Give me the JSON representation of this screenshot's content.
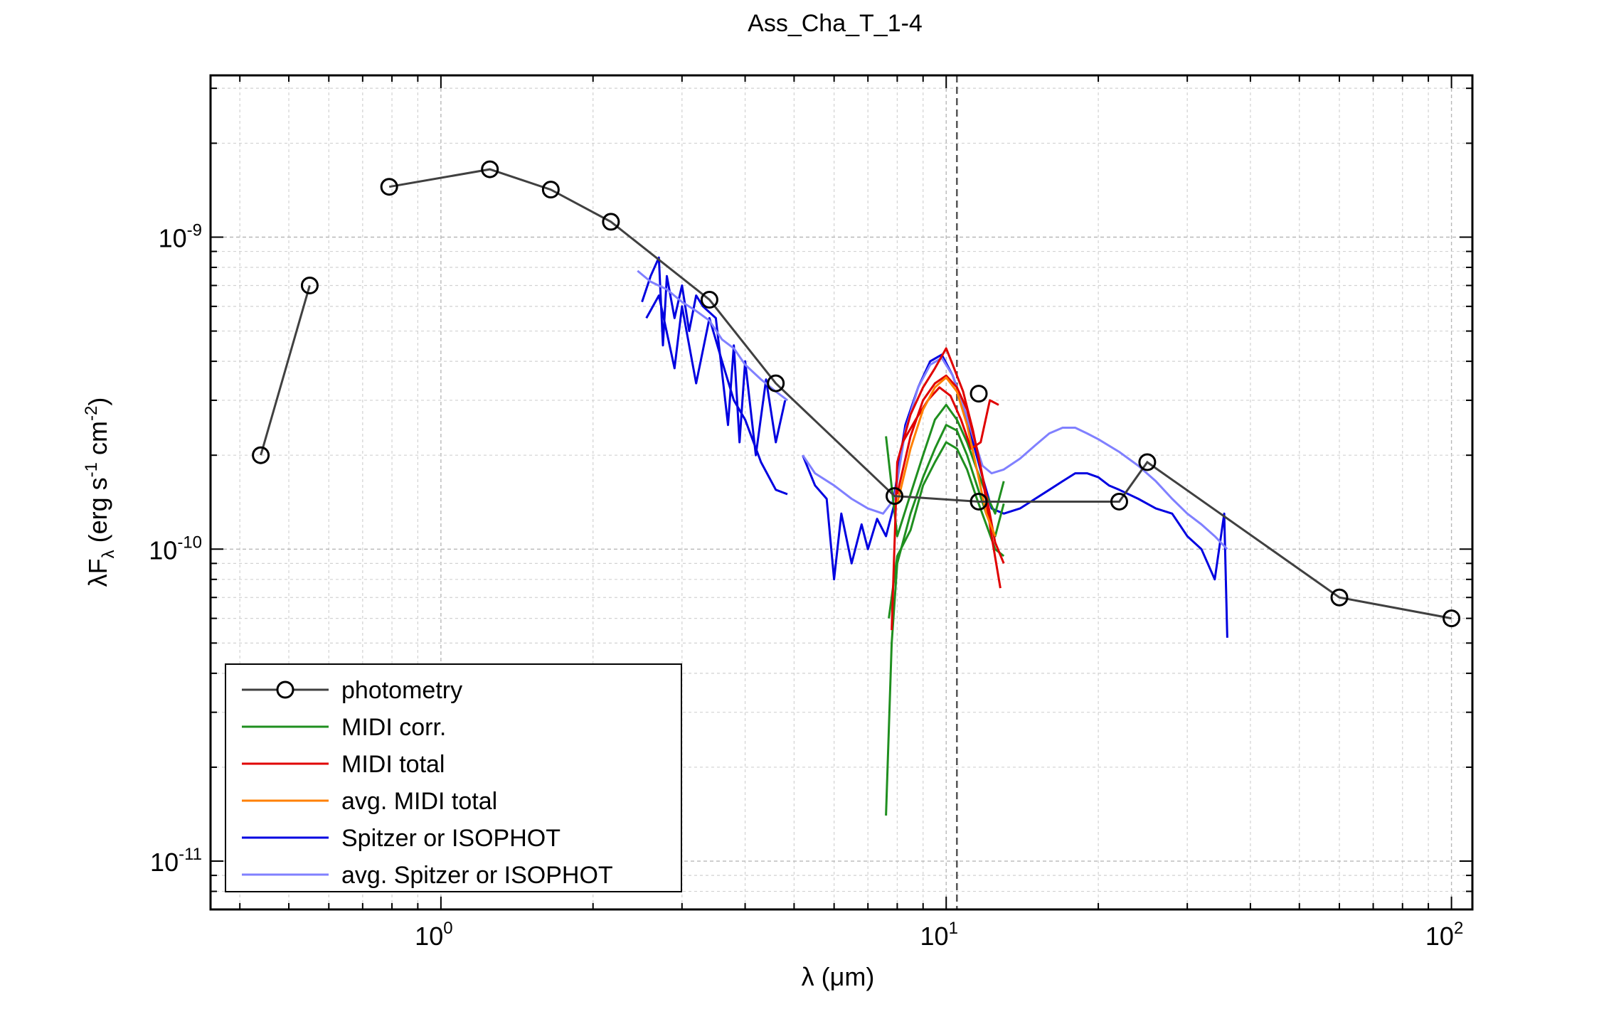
{
  "chart_data": {
    "type": "line",
    "title": "Ass_Cha_T_1-4",
    "xlabel": "λ (μm)",
    "ylabel": "λF_λ (erg s^-1 cm^-2)",
    "x_scale": "log",
    "y_scale": "log",
    "xlim": [
      0.35,
      110
    ],
    "ylim": [
      7e-12,
      3.3e-09
    ],
    "x_ticks": [
      {
        "value": 1,
        "base": "10",
        "exp": "0"
      },
      {
        "value": 10,
        "base": "10",
        "exp": "1"
      },
      {
        "value": 100,
        "base": "10",
        "exp": "2"
      }
    ],
    "y_ticks": [
      {
        "value": 1e-11,
        "base": "10",
        "exp": "-11"
      },
      {
        "value": 1e-10,
        "base": "10",
        "exp": "-10"
      },
      {
        "value": 1e-09,
        "base": "10",
        "exp": "-9"
      }
    ],
    "grid": true,
    "vline_x": 10.5,
    "legend_position": "bottom-left",
    "colors": {
      "photometry": "#404040",
      "midi_corr": "#1f8f1f",
      "midi_total": "#e00000",
      "avg_midi_total": "#ff8000",
      "spitzer": "#0000e0",
      "avg_spitzer": "#8080ff"
    },
    "series": [
      {
        "name": "photometry",
        "key": "photometry",
        "style": "line+circle",
        "segments": [
          {
            "x": [
              0.44,
              0.55
            ],
            "y": [
              2e-10,
              7e-10
            ]
          },
          {
            "x": [
              0.79,
              1.25,
              1.65,
              2.17,
              3.4,
              4.6,
              7.9,
              11.6,
              22.0,
              25.0,
              60.0,
              100.0
            ],
            "y": [
              1.45e-09,
              1.65e-09,
              1.42e-09,
              1.12e-09,
              6.3e-10,
              3.4e-10,
              1.48e-10,
              1.42e-10,
              1.42e-10,
              1.9e-10,
              7e-11,
              6e-11
            ]
          }
        ],
        "markers": {
          "x": [
            0.44,
            0.55,
            0.79,
            1.25,
            1.65,
            2.17,
            3.4,
            4.6,
            7.9,
            11.6,
            11.6,
            22.0,
            25.0,
            60.0,
            100.0
          ],
          "y": [
            2e-10,
            7e-10,
            1.45e-09,
            1.65e-09,
            1.42e-09,
            1.12e-09,
            6.3e-10,
            3.4e-10,
            1.48e-10,
            3.15e-10,
            1.42e-10,
            1.42e-10,
            1.9e-10,
            7e-11,
            6e-11
          ]
        }
      },
      {
        "name": "MIDI corr.",
        "key": "midi_corr",
        "curves": [
          {
            "x": [
              7.6,
              7.8,
              8.0,
              8.5,
              9.0,
              9.5,
              10.0,
              10.5,
              11.0,
              11.5,
              12.0,
              12.5,
              13.0
            ],
            "y": [
              1.4e-11,
              5e-11,
              9e-11,
              1.3e-10,
              1.7e-10,
              2.1e-10,
              2.5e-10,
              2.4e-10,
              2e-10,
              1.6e-10,
              1.3e-10,
              1.1e-10,
              1.4e-10
            ]
          },
          {
            "x": [
              7.6,
              8.0,
              8.5,
              9.0,
              9.5,
              10.0,
              10.5,
              11.0,
              11.5,
              12.0,
              12.5,
              13.0
            ],
            "y": [
              2.3e-10,
              1.1e-10,
              1.5e-10,
              2e-10,
              2.6e-10,
              2.9e-10,
              2.6e-10,
              2.2e-10,
              1.8e-10,
              1.5e-10,
              1.3e-10,
              1.65e-10
            ]
          },
          {
            "x": [
              7.7,
              8.0,
              8.5,
              9.0,
              9.5,
              10.0,
              10.5,
              11.0,
              11.5,
              12.0,
              12.5,
              13.0
            ],
            "y": [
              6e-11,
              9.5e-11,
              1.15e-10,
              1.6e-10,
              1.9e-10,
              2.2e-10,
              2.1e-10,
              1.8e-10,
              1.45e-10,
              1.2e-10,
              1e-10,
              9.5e-11
            ]
          }
        ]
      },
      {
        "name": "MIDI total",
        "key": "midi_total",
        "curves": [
          {
            "x": [
              7.8,
              8.0,
              8.5,
              9.0,
              9.5,
              10.0,
              10.3,
              10.8,
              11.3,
              11.8,
              12.3,
              12.8
            ],
            "y": [
              5.5e-11,
              1.9e-10,
              2.7e-10,
              3.3e-10,
              3.8e-10,
              4.4e-10,
              3.9e-10,
              3.2e-10,
              2.4e-10,
              1.7e-10,
              1.1e-10,
              7.5e-11
            ]
          },
          {
            "x": [
              8.0,
              8.5,
              9.0,
              9.5,
              10.0,
              10.5,
              11.0,
              11.5,
              12.0,
              12.5,
              13.0
            ],
            "y": [
              1.5e-10,
              2.3e-10,
              3e-10,
              3.4e-10,
              3.6e-10,
              3.3e-10,
              2.8e-10,
              2.1e-10,
              1.5e-10,
              1.05e-10,
              9e-11
            ]
          },
          {
            "x": [
              8.2,
              8.7,
              9.2,
              9.7,
              10.2,
              10.7,
              11.2,
              11.7,
              12.2,
              12.7
            ],
            "y": [
              2.2e-10,
              2.6e-10,
              3e-10,
              3.3e-10,
              3.1e-10,
              2.6e-10,
              2.1e-10,
              2.2e-10,
              3e-10,
              2.9e-10
            ]
          }
        ]
      },
      {
        "name": "avg. MIDI total",
        "key": "avg_midi_total",
        "curves": [
          {
            "x": [
              8.0,
              8.5,
              9.0,
              9.5,
              10.0,
              10.5,
              11.0,
              11.5,
              12.0,
              12.5
            ],
            "y": [
              1.4e-10,
              2.1e-10,
              2.8e-10,
              3.3e-10,
              3.55e-10,
              3.2e-10,
              2.5e-10,
              1.8e-10,
              1.3e-10,
              1.1e-10
            ]
          }
        ]
      },
      {
        "name": "Spitzer or ISOPHOT",
        "key": "spitzer",
        "curves": [
          {
            "x": [
              2.5,
              2.6,
              2.7,
              2.75,
              2.8,
              2.9,
              3.0,
              3.1,
              3.2,
              3.3,
              3.5,
              3.7,
              3.8,
              3.9,
              4.0,
              4.2,
              4.4,
              4.6,
              4.8
            ],
            "y": [
              6.2e-10,
              7.5e-10,
              8.6e-10,
              4.5e-10,
              7.5e-10,
              5.5e-10,
              7e-10,
              5e-10,
              6.5e-10,
              6e-10,
              5.5e-10,
              2.5e-10,
              4.5e-10,
              2.2e-10,
              4e-10,
              2e-10,
              3.5e-10,
              2.2e-10,
              3e-10
            ]
          },
          {
            "x": [
              2.55,
              2.7,
              2.9,
              3.0,
              3.2,
              3.4,
              3.6,
              3.8,
              4.0,
              4.3,
              4.6,
              4.85
            ],
            "y": [
              5.5e-10,
              6.5e-10,
              3.8e-10,
              6e-10,
              3.4e-10,
              5.5e-10,
              4e-10,
              3e-10,
              2.6e-10,
              1.9e-10,
              1.55e-10,
              1.5e-10
            ]
          },
          {
            "x": [
              5.2,
              5.5,
              5.8,
              6.0,
              6.2,
              6.5,
              6.8,
              7.0,
              7.3,
              7.6,
              7.9
            ],
            "y": [
              2e-10,
              1.6e-10,
              1.45e-10,
              8e-11,
              1.3e-10,
              9e-11,
              1.2e-10,
              1e-10,
              1.25e-10,
              1.1e-10,
              1.4e-10
            ]
          },
          {
            "x": [
              7.9,
              8.3,
              8.8,
              9.3,
              9.8,
              10.3,
              10.8,
              11.3,
              11.8,
              12.3,
              13.0,
              14.0,
              15.0,
              16.0,
              17.0,
              18.0,
              19.0,
              20.0,
              21.0,
              22.0,
              24.0,
              26.0,
              28.0,
              30.0,
              32.0,
              34.0,
              35.5,
              36.0
            ],
            "y": [
              1.5e-10,
              2.5e-10,
              3.3e-10,
              4e-10,
              4.2e-10,
              3.6e-10,
              2.9e-10,
              2.2e-10,
              1.7e-10,
              1.35e-10,
              1.3e-10,
              1.35e-10,
              1.45e-10,
              1.55e-10,
              1.65e-10,
              1.75e-10,
              1.75e-10,
              1.7e-10,
              1.6e-10,
              1.55e-10,
              1.45e-10,
              1.35e-10,
              1.3e-10,
              1.1e-10,
              1e-10,
              8e-11,
              1.3e-10,
              5.2e-11
            ]
          }
        ]
      },
      {
        "name": "avg. Spitzer or ISOPHOT",
        "key": "avg_spitzer",
        "curves": [
          {
            "x": [
              2.45,
              2.6,
              2.8,
              3.0,
              3.2,
              3.4,
              3.6,
              3.8,
              4.0,
              4.3,
              4.6,
              4.85
            ],
            "y": [
              7.8e-10,
              7.2e-10,
              6.8e-10,
              6.2e-10,
              5.8e-10,
              5.4e-10,
              4.7e-10,
              4.4e-10,
              3.9e-10,
              3.5e-10,
              3.2e-10,
              3e-10
            ]
          },
          {
            "x": [
              5.2,
              5.5,
              6.0,
              6.5,
              7.0,
              7.5,
              7.9,
              8.3,
              8.8,
              9.3,
              9.8,
              10.3,
              10.8,
              11.3,
              11.8,
              12.3,
              13.0,
              14.0,
              15.0,
              16.0,
              17.0,
              18.0,
              19.0,
              20.0,
              22.0,
              24.0,
              26.0,
              28.0,
              30.0,
              32.0,
              34.0,
              36.0
            ],
            "y": [
              2e-10,
              1.75e-10,
              1.6e-10,
              1.45e-10,
              1.35e-10,
              1.3e-10,
              1.45e-10,
              2.4e-10,
              3.3e-10,
              3.9e-10,
              4.1e-10,
              3.6e-10,
              2.9e-10,
              2.3e-10,
              1.85e-10,
              1.75e-10,
              1.8e-10,
              1.95e-10,
              2.15e-10,
              2.35e-10,
              2.45e-10,
              2.45e-10,
              2.35e-10,
              2.25e-10,
              2.05e-10,
              1.85e-10,
              1.65e-10,
              1.45e-10,
              1.3e-10,
              1.2e-10,
              1.1e-10,
              1e-10
            ]
          }
        ]
      }
    ]
  }
}
